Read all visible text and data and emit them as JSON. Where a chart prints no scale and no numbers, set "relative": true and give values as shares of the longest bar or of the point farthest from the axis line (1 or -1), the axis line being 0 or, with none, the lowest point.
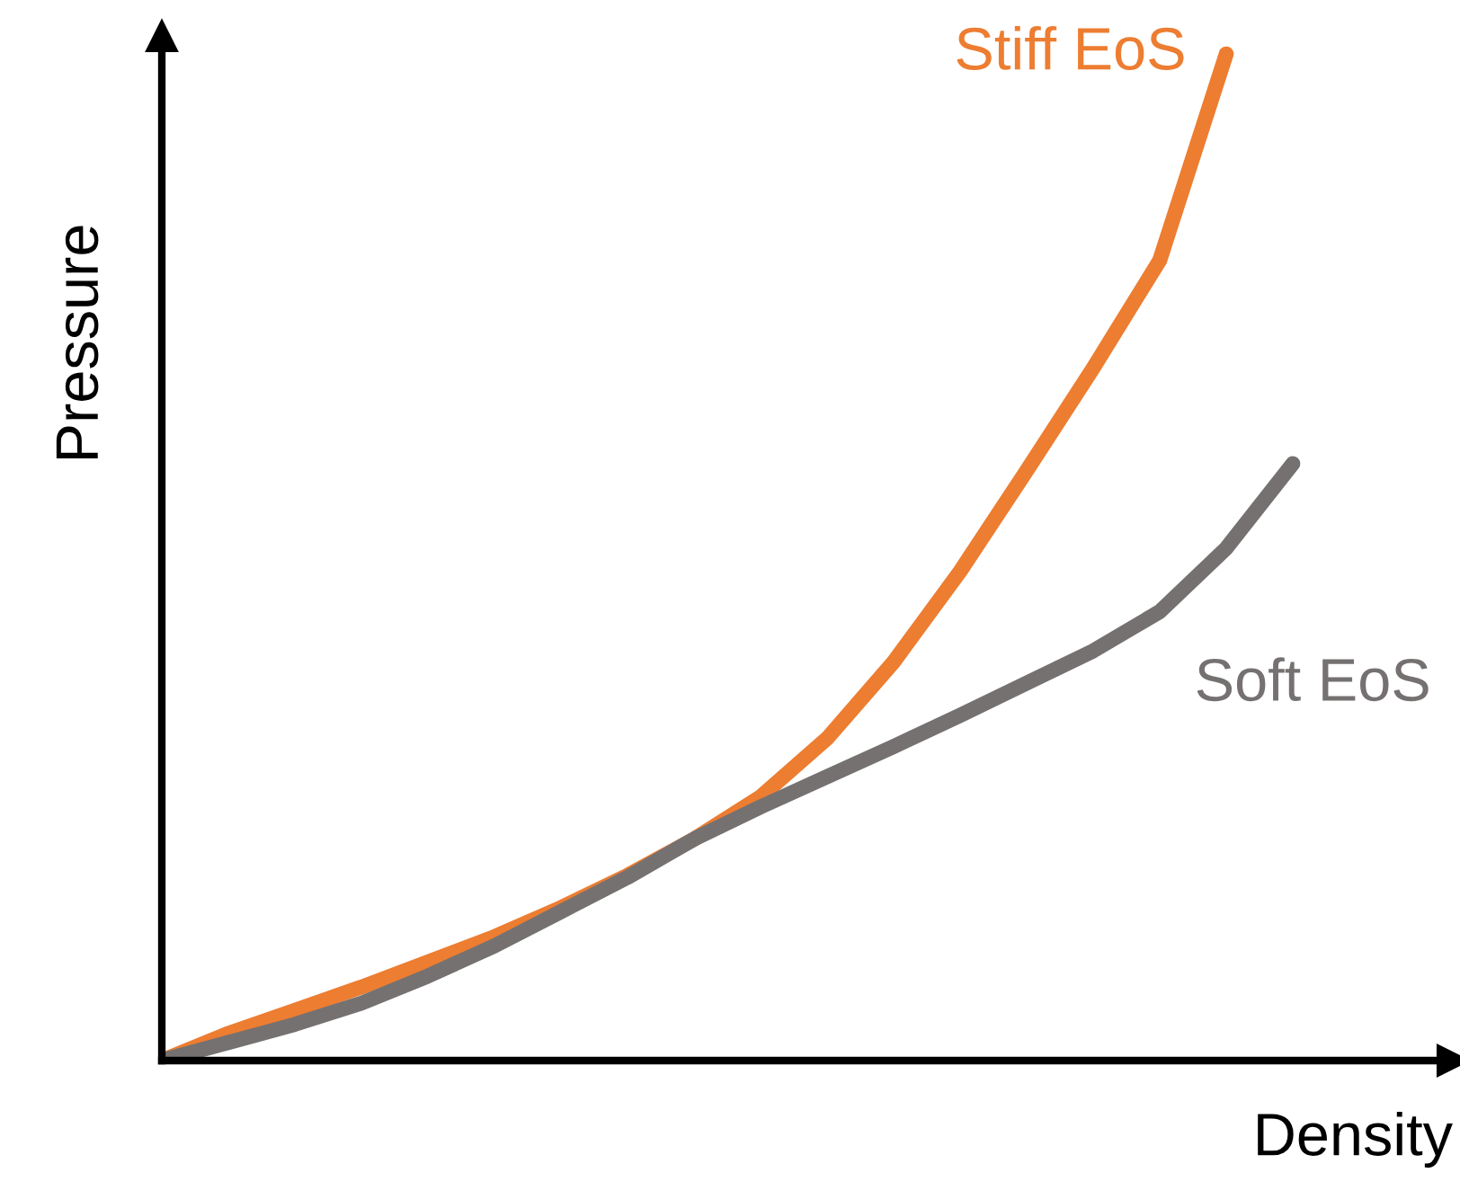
{
  "chart_data": {
    "type": "line",
    "relative": true,
    "xlabel": "Density",
    "ylabel": "Pressure",
    "categories": [
      null,
      null,
      null,
      null,
      null,
      null,
      null,
      null,
      null,
      null,
      null,
      null,
      null,
      null,
      null,
      null,
      null,
      null
    ],
    "series": [
      {
        "name": "Stiff EoS",
        "color": "#ed7d31",
        "values": [
          0.0,
          0.027,
          0.05,
          0.073,
          0.098,
          0.123,
          0.152,
          0.184,
          0.22,
          0.262,
          0.32,
          0.396,
          0.486,
          0.586,
          0.688,
          0.795,
          1.0,
          null
        ]
      },
      {
        "name": "Soft EoS",
        "color": "#757171",
        "values": [
          0.0,
          0.018,
          0.036,
          0.057,
          0.084,
          0.114,
          0.148,
          0.182,
          0.22,
          0.252,
          0.282,
          0.312,
          0.343,
          0.375,
          0.407,
          0.446,
          0.509,
          0.593
        ]
      }
    ],
    "grid": false,
    "legend": false,
    "marker": "none",
    "line_style": "solid"
  }
}
